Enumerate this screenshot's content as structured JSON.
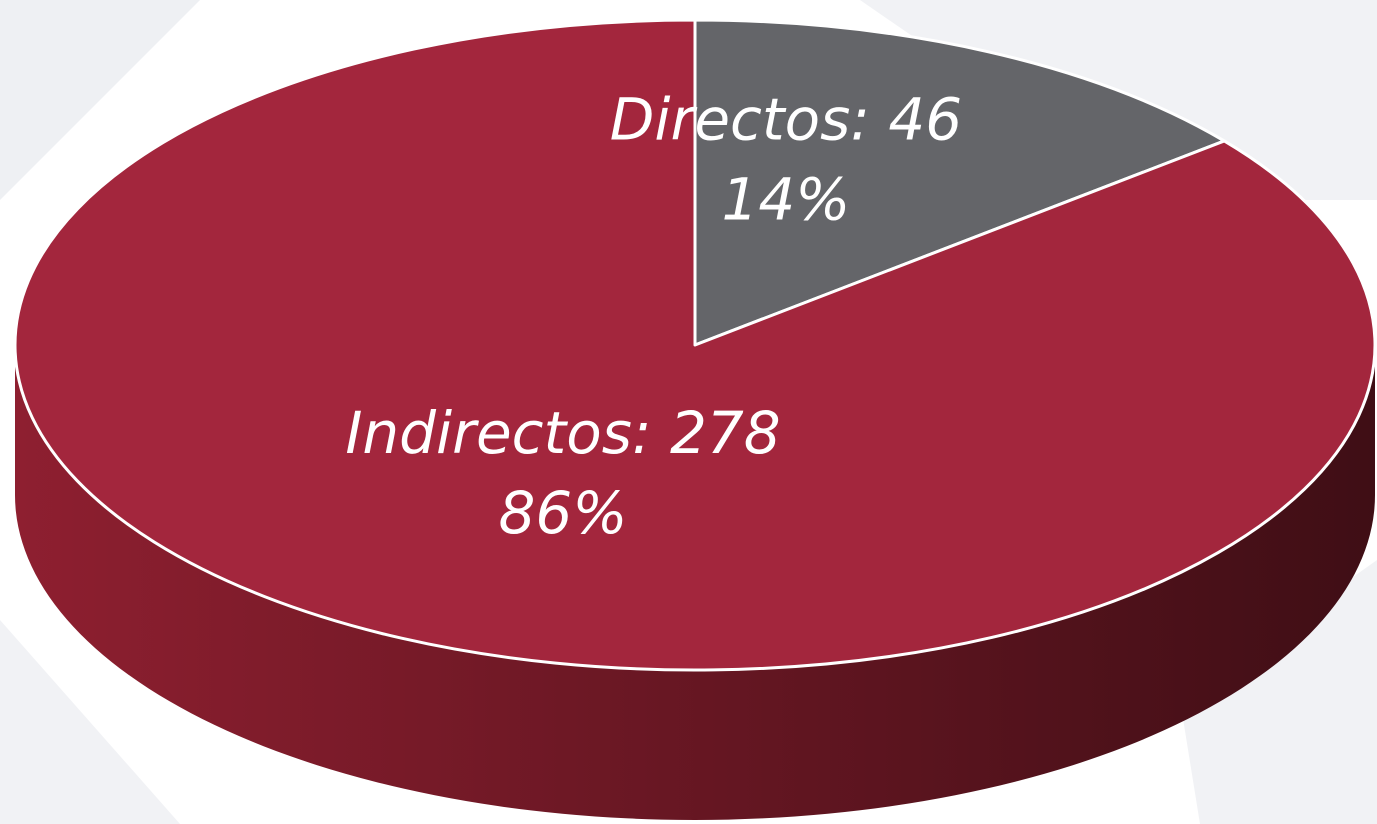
{
  "chart_data": {
    "type": "pie3d",
    "values": [
      46,
      278
    ],
    "value_labels": [
      "Directos: 46",
      "Indirectos: 278"
    ],
    "percent_labels": [
      "14%",
      "86%"
    ],
    "colors": [
      "#646569",
      "#a3263d"
    ],
    "side_colors": [
      [
        "#4a4b4e",
        "#2e2f31"
      ],
      [
        "#8e1f30",
        "#3f0e15"
      ]
    ]
  }
}
